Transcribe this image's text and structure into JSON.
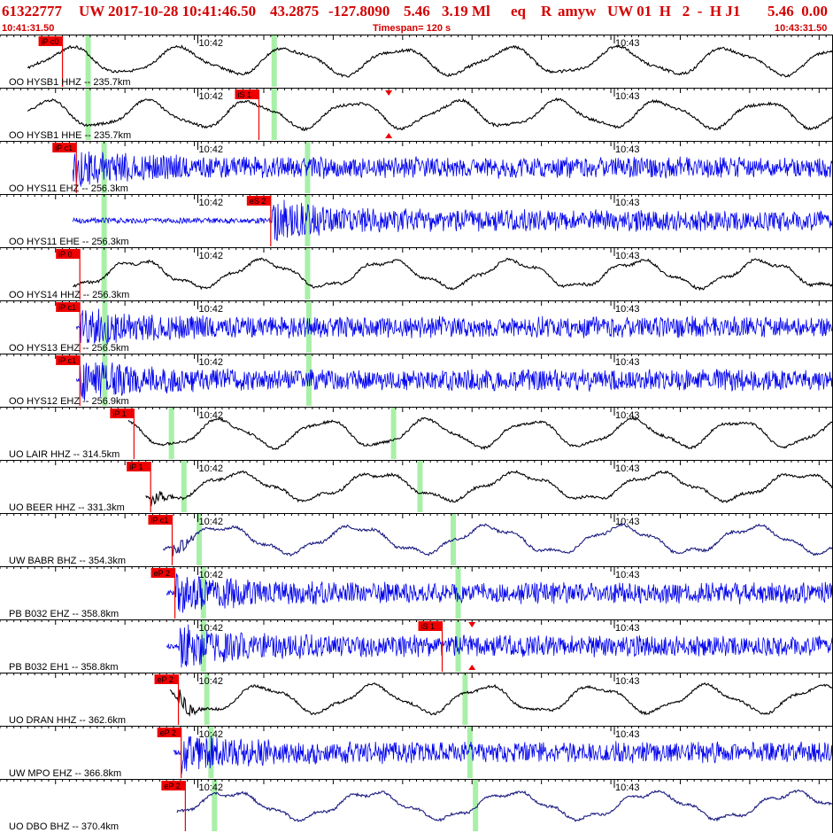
{
  "header": {
    "event_id": "61322777",
    "network": "UW",
    "origin": "2017-10-28 10:41:46.50",
    "lat": "43.2875",
    "lon": "-127.8090",
    "depth": "5.46",
    "magnitude": "3.19 Ml",
    "type": "eq",
    "review": "R",
    "author": "amyw",
    "source_info": "UW 01  H   2  -  H J1",
    "quality": "5.46  0.00",
    "start_time": "10:41:31.50",
    "timespan": "Timespan= 120 s",
    "end_time": "10:43:31.50"
  },
  "colors": {
    "header_red": "#d40000",
    "trace_black": "#000000",
    "trace_blue": "#0000ee",
    "trace_navy": "#1a1a80",
    "pick_red": "#ee0000",
    "marker_green": "#a8f0a8"
  },
  "time_axis": {
    "start_seconds": 91.5,
    "span_seconds": 120,
    "major_tick_labels": [
      {
        "label": "10:42",
        "t": 120
      },
      {
        "label": "10:43",
        "t": 180
      }
    ]
  },
  "traces": [
    {
      "label": "OO HYSB1 HHZ -- 235.7km",
      "color": "black",
      "kind": "low",
      "start": 35.5,
      "picks": [
        {
          "label": "iP c0",
          "t": 40.5
        }
      ],
      "theo": [
        44.2,
        71.0
      ]
    },
    {
      "label": "OO HYSB1 HHE -- 235.7km",
      "color": "black",
      "kind": "low",
      "start": 35.5,
      "picks": [
        {
          "label": "iS 1",
          "t": 68.8
        }
      ],
      "theo": [
        44.2,
        71.0
      ],
      "tick_mark": 87.5
    },
    {
      "label": "OO HYS11 EHZ -- 256.3km",
      "color": "blue",
      "kind": "high",
      "start": 42.0,
      "onset": 42.0,
      "picks": [
        {
          "label": "iP c1",
          "t": 42.5
        }
      ],
      "theo": [
        46.5,
        75.8
      ]
    },
    {
      "label": "OO HYS11 EHE -- 256.3km",
      "color": "blue",
      "kind": "high",
      "start": 42.0,
      "onset": 70.5,
      "picks": [
        {
          "label": "eS 2",
          "t": 70.5
        }
      ],
      "theo": [
        46.5,
        75.8
      ]
    },
    {
      "label": "OO HYS14 HHZ -- 256.3km",
      "color": "black",
      "kind": "low",
      "start": 42.0,
      "picks": [
        {
          "label": "iP 0",
          "t": 43.0
        }
      ],
      "theo": [
        46.5,
        75.8
      ]
    },
    {
      "label": "OO HYS13 EHZ -- 256.5km",
      "color": "blue",
      "kind": "high",
      "start": 42.5,
      "onset": 43.0,
      "picks": [
        {
          "label": "iP c1",
          "t": 43.0
        }
      ],
      "theo": [
        46.6,
        76.0
      ]
    },
    {
      "label": "OO HYS12 EHZ -- 256.9km",
      "color": "blue",
      "kind": "high",
      "start": 42.5,
      "onset": 43.0,
      "picks": [
        {
          "label": "iP c1",
          "t": 43.0
        }
      ],
      "theo": [
        46.6,
        76.0
      ]
    },
    {
      "label": "UO LAIR HHZ -- 314.5km",
      "color": "black",
      "kind": "low",
      "start": 50.0,
      "picks": [
        {
          "label": "iP 1",
          "t": 50.8
        }
      ],
      "theo": [
        56.2,
        88.2
      ]
    },
    {
      "label": "UO BEER HHZ -- 331.3km",
      "color": "black",
      "kind": "low",
      "start": 52.5,
      "onset": 53.2,
      "picks": [
        {
          "label": "iP 1",
          "t": 53.2
        }
      ],
      "theo": [
        58.0,
        92.0
      ]
    },
    {
      "label": "UW BABR BHZ -- 354.3km",
      "color": "navy",
      "kind": "low",
      "start": 55.0,
      "onset": 56.3,
      "picks": [
        {
          "label": "iP c1",
          "t": 56.3
        }
      ],
      "theo": [
        60.2,
        96.8
      ]
    },
    {
      "label": "PB B032 EHZ -- 358.8km",
      "color": "blue",
      "kind": "high",
      "start": 55.5,
      "onset": 56.7,
      "picks": [
        {
          "label": "eP 2",
          "t": 56.7
        }
      ],
      "theo": [
        60.8,
        97.5
      ]
    },
    {
      "label": "PB B032 EH1 -- 358.8km",
      "color": "blue",
      "kind": "high",
      "start": 55.5,
      "onset": 57.2,
      "picks": [
        {
          "label": "iS 1",
          "t": 95.2
        }
      ],
      "theo": [
        60.8,
        97.5
      ],
      "tick_mark": 99.5
    },
    {
      "label": "UO DRAN HHZ -- 362.6km",
      "color": "black",
      "kind": "low",
      "start": 56.0,
      "onset": 57.2,
      "picks": [
        {
          "label": "eP 2",
          "t": 57.2
        }
      ],
      "theo": [
        61.3,
        98.5
      ]
    },
    {
      "label": "UW MPO EHZ -- 366.8km",
      "color": "blue",
      "kind": "high",
      "start": 56.5,
      "onset": 57.6,
      "picks": [
        {
          "label": "eP 2",
          "t": 57.6
        }
      ],
      "theo": [
        61.9,
        99.2
      ]
    },
    {
      "label": "UO DBO BHZ -- 370.4km",
      "color": "navy",
      "kind": "low",
      "start": 57.0,
      "picks": [
        {
          "label": "eP 2",
          "t": 58.2
        }
      ],
      "theo": [
        62.4,
        100.0
      ]
    }
  ]
}
